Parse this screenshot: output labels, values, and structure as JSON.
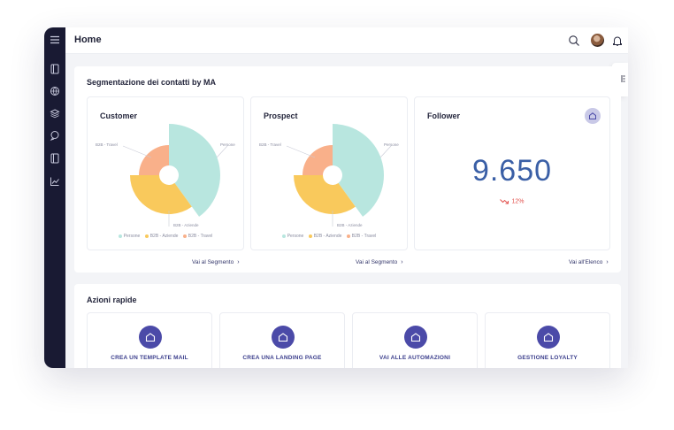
{
  "header": {
    "title": "Home"
  },
  "segmentation": {
    "title": "Segmentazione dei contatti by MA",
    "cards": [
      {
        "title": "Customer",
        "link": "Vai al Segmento",
        "labels": {
          "top_left": "B2B - Travel",
          "right": "Persone",
          "bottom": "B2B - Aziende"
        },
        "legend": [
          "Persone",
          "B2B - Aziende",
          "B2B - Travel"
        ]
      },
      {
        "title": "Prospect",
        "link": "Vai al Segmento",
        "labels": {
          "top_left": "B2B - Travel",
          "right": "Persone",
          "bottom": "B2B - Aziende"
        },
        "legend": [
          "Persone",
          "B2B - Aziende",
          "B2B - Travel"
        ]
      }
    ],
    "follower": {
      "title": "Follower",
      "value": "9.650",
      "trend": "12%",
      "link": "Vai all'Elenco"
    }
  },
  "chart_data": [
    {
      "type": "pie",
      "title": "Customer",
      "series": [
        {
          "name": "Persone",
          "value": 40,
          "color": "#b8e6df"
        },
        {
          "name": "B2B - Aziende",
          "value": 35,
          "color": "#f9c95c"
        },
        {
          "name": "B2B - Travel",
          "value": 25,
          "color": "#f9b08a"
        }
      ]
    },
    {
      "type": "pie",
      "title": "Prospect",
      "series": [
        {
          "name": "Persone",
          "value": 40,
          "color": "#b8e6df"
        },
        {
          "name": "B2B - Aziende",
          "value": 35,
          "color": "#f9c95c"
        },
        {
          "name": "B2B - Travel",
          "value": 25,
          "color": "#f9b08a"
        }
      ]
    }
  ],
  "quick_actions": {
    "title": "Azioni rapide",
    "items": [
      {
        "label": "CREA UN TEMPLATE MAIL",
        "icon": "home-icon"
      },
      {
        "label": "CREA UNA LANDING PAGE",
        "icon": "home-icon"
      },
      {
        "label": "VAI ALLE AUTOMAZIONI",
        "icon": "home-icon"
      },
      {
        "label": "GESTIONE LOYALTY",
        "icon": "home-icon"
      }
    ]
  },
  "colors": {
    "sidebar": "#191a33",
    "accent": "#4b4aa8",
    "number": "#3a5fa6",
    "trend_down": "#e2514d"
  }
}
